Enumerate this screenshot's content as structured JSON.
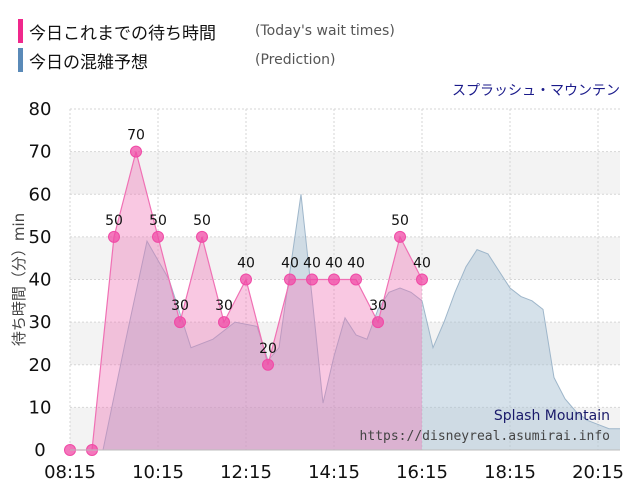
{
  "legend": {
    "wait_label": "今日これまでの待ち時間",
    "wait_note": "(Today's wait times)",
    "wait_color": "#f0288c",
    "pred_label": "今日の混雑予想",
    "pred_note": "(Prediction)",
    "pred_color": "#5a8ab8"
  },
  "attraction_jp": "スプラッシュ・マウンテン",
  "watermark": {
    "name_en": "Splash Mountain",
    "url": "https://disneyreal.asumirai.info"
  },
  "chart_data": {
    "type": "area",
    "xlabel": "",
    "ylabel": "待ち時間（分）min",
    "ylim": [
      0,
      80
    ],
    "xlim": [
      "08:15",
      "20:45"
    ],
    "y_ticks": [
      "0",
      "10",
      "20",
      "30",
      "40",
      "50",
      "60",
      "70",
      "80"
    ],
    "x_ticks": [
      "08:15",
      "10:15",
      "12:15",
      "14:15",
      "16:15",
      "18:15",
      "20:15"
    ],
    "grid": true,
    "series": [
      {
        "name": "今日の混雑予想",
        "color": "#a8c0d4",
        "x": [
          "09:00",
          "09:30",
          "10:00",
          "10:30",
          "11:00",
          "11:30",
          "12:00",
          "12:30",
          "12:45",
          "13:00",
          "13:15",
          "13:30",
          "13:45",
          "14:00",
          "14:15",
          "14:30",
          "14:45",
          "15:00",
          "15:15",
          "15:30",
          "15:45",
          "16:00",
          "16:15",
          "16:30",
          "16:45",
          "17:00",
          "17:15",
          "17:30",
          "17:45",
          "18:00",
          "18:15",
          "18:30",
          "18:45",
          "19:00",
          "19:15",
          "19:30",
          "19:45",
          "20:00",
          "20:15",
          "20:30",
          "20:45"
        ],
        "values": [
          0,
          25,
          49,
          40,
          24,
          26,
          30,
          29,
          21,
          24,
          42,
          60,
          36,
          11,
          22,
          31,
          27,
          26,
          33,
          37,
          38,
          37,
          35,
          24,
          30,
          37,
          43,
          47,
          46,
          42,
          38,
          36,
          35,
          33,
          17,
          12,
          9,
          7,
          6,
          5,
          5
        ]
      },
      {
        "name": "今日これまでの待ち時間",
        "color": "#f0288c",
        "x": [
          "08:15",
          "08:45",
          "09:15",
          "09:45",
          "10:15",
          "10:45",
          "11:15",
          "11:45",
          "12:15",
          "12:45",
          "13:15",
          "13:45",
          "14:15",
          "14:45",
          "15:15",
          "15:45",
          "16:15"
        ],
        "values": [
          0,
          0,
          50,
          70,
          50,
          30,
          50,
          30,
          40,
          20,
          40,
          40,
          40,
          40,
          30,
          50,
          40
        ],
        "labels": [
          "",
          "",
          "50",
          "70",
          "50",
          "30",
          "50",
          "30",
          "40",
          "20",
          "40",
          "40",
          "40",
          "40",
          "30",
          "50",
          "40"
        ]
      }
    ]
  }
}
